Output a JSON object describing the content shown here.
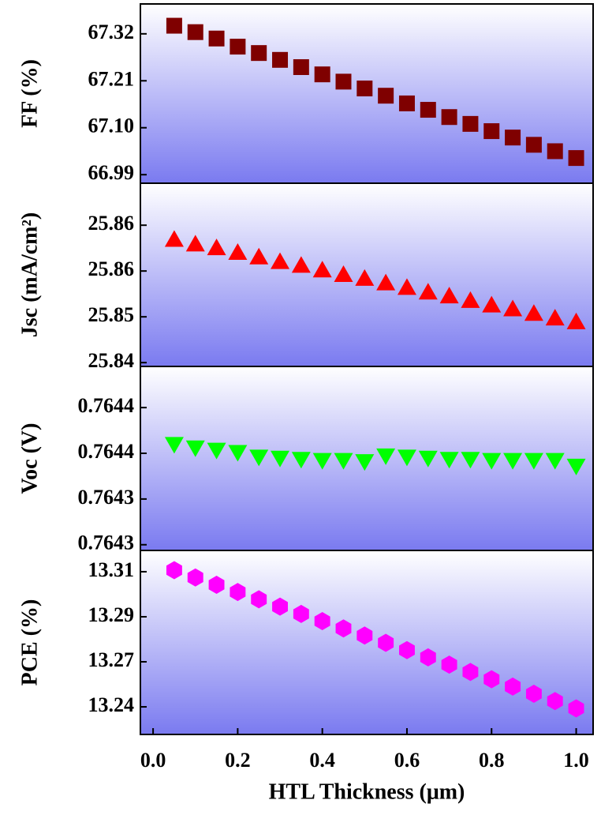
{
  "chart_data": [
    {
      "type": "scatter",
      "ylabel": "FF (%)",
      "marker": "square",
      "color": "#7f0000",
      "x": [
        0.05,
        0.1,
        0.15,
        0.2,
        0.25,
        0.3,
        0.35,
        0.4,
        0.45,
        0.5,
        0.55,
        0.6,
        0.65,
        0.7,
        0.75,
        0.8,
        0.85,
        0.9,
        0.95,
        1.0
      ],
      "values": [
        67.339,
        67.324,
        67.309,
        67.29,
        67.275,
        67.259,
        67.242,
        67.225,
        67.208,
        67.192,
        67.175,
        67.157,
        67.142,
        67.125,
        67.109,
        67.092,
        67.077,
        67.06,
        67.045,
        67.029
      ],
      "xlim": [
        -0.03,
        1.04
      ],
      "ylim": [
        66.97,
        67.39
      ],
      "yticks": [
        67.32,
        67.21,
        {
          "value": 67.1,
          "label": "67.10"
        },
        66.99
      ]
    },
    {
      "type": "scatter",
      "ylabel": "Jsc (mA/cm²)",
      "marker": "triangle-up",
      "color": "#ff0000",
      "x": [
        0.05,
        0.1,
        0.15,
        0.2,
        0.25,
        0.3,
        0.35,
        0.4,
        0.45,
        0.5,
        0.55,
        0.6,
        0.65,
        0.7,
        0.75,
        0.8,
        0.85,
        0.9,
        0.95,
        1.0
      ],
      "values": [
        25.8601,
        25.8595,
        25.859,
        25.8584,
        25.8578,
        25.8572,
        25.8567,
        25.8561,
        25.8555,
        25.855,
        25.8544,
        25.8538,
        25.8532,
        25.8527,
        25.8521,
        25.8515,
        25.851,
        25.8504,
        25.8498,
        25.8493
      ],
      "xlim": [
        -0.03,
        1.04
      ],
      "ylim": [
        25.8435,
        25.8675
      ],
      "yticks": [
        {
          "value": 25.862,
          "label": "25.86"
        },
        {
          "value": 25.856,
          "label": "25.86"
        },
        {
          "value": 25.85,
          "label": "25.85"
        },
        {
          "value": 25.844,
          "label": "25.84"
        }
      ]
    },
    {
      "type": "scatter",
      "ylabel": "Voc (V)",
      "marker": "triangle-down",
      "color": "#00ff00",
      "x": [
        0.05,
        0.1,
        0.15,
        0.2,
        0.25,
        0.3,
        0.35,
        0.4,
        0.45,
        0.5,
        0.55,
        0.6,
        0.65,
        0.7,
        0.75,
        0.8,
        0.85,
        0.9,
        0.95,
        1.0
      ],
      "values": [
        0.764388,
        0.764385,
        0.764383,
        0.764381,
        0.764377,
        0.764376,
        0.764375,
        0.764374,
        0.764374,
        0.764373,
        0.764378,
        0.764377,
        0.764376,
        0.764375,
        0.764375,
        0.764374,
        0.764374,
        0.764374,
        0.764374,
        0.764369
      ],
      "xlim": [
        -0.03,
        1.04
      ],
      "ylim": [
        0.764295,
        0.764456
      ],
      "yticks": [
        {
          "value": 0.76442,
          "label": "0.7644"
        },
        {
          "value": 0.76438,
          "label": "0.7644"
        },
        {
          "value": 0.76434,
          "label": "0.7643"
        },
        {
          "value": 0.7643,
          "label": "0.7643"
        }
      ]
    },
    {
      "type": "scatter",
      "ylabel": "PCE (%)",
      "xlabel": "HTL Thickness (μm)",
      "marker": "hexagon",
      "color": "#ff00ff",
      "x": [
        0.05,
        0.1,
        0.15,
        0.2,
        0.25,
        0.3,
        0.35,
        0.4,
        0.45,
        0.5,
        0.55,
        0.6,
        0.65,
        0.7,
        0.75,
        0.8,
        0.85,
        0.9,
        0.95,
        1.0
      ],
      "values": [
        13.3148,
        13.311,
        13.3072,
        13.3034,
        13.2996,
        13.2958,
        13.292,
        13.2882,
        13.2844,
        13.2807,
        13.2769,
        13.2731,
        13.2693,
        13.2655,
        13.2617,
        13.2579,
        13.2541,
        13.2503,
        13.2465,
        13.2427
      ],
      "xlim": [
        -0.03,
        1.04
      ],
      "ylim": [
        13.2291,
        13.3251
      ],
      "yticks": [
        {
          "value": 13.314,
          "label": "13.31"
        },
        {
          "value": 13.2905,
          "label": "13.29"
        },
        {
          "value": 13.267,
          "label": "13.27"
        },
        {
          "value": 13.2435,
          "label": "13.24"
        }
      ],
      "xticks": [
        {
          "value": 0,
          "label": "0.0"
        },
        0.2,
        0.4,
        0.6,
        0.8,
        {
          "value": 1,
          "label": "1.0"
        }
      ]
    }
  ]
}
